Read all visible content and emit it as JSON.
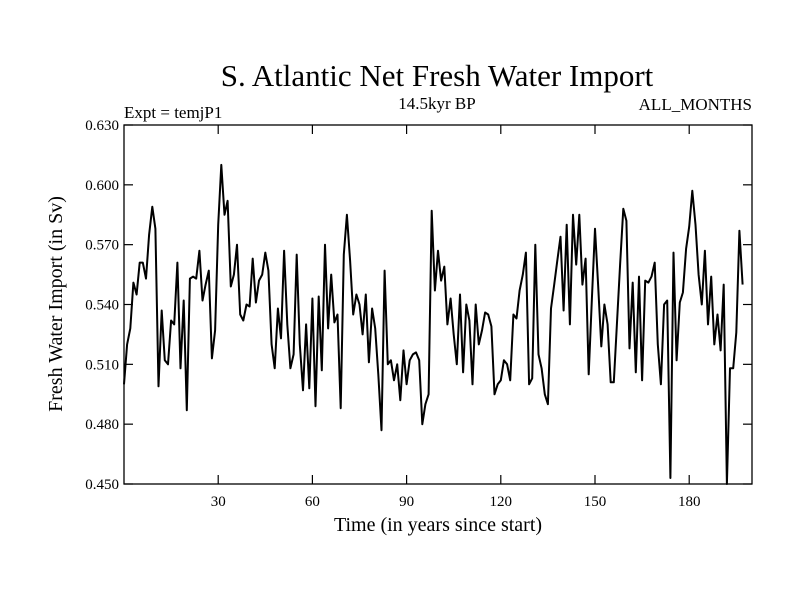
{
  "chart_data": {
    "type": "line",
    "title": "S. Atlantic Net Fresh Water Import",
    "subtitle": "14.5kyr BP",
    "left_label": "Expt = temjP1",
    "right_label": "ALL_MONTHS",
    "xlabel": "Time (in years since start)",
    "ylabel": "Fresh Water Import (in Sv)",
    "xlim": [
      0,
      200
    ],
    "ylim": [
      0.45,
      0.63
    ],
    "x_ticks": [
      30,
      60,
      90,
      120,
      150,
      180
    ],
    "y_ticks": [
      0.45,
      0.48,
      0.51,
      0.54,
      0.57,
      0.6,
      0.63
    ],
    "x_tick_labels": [
      "30",
      "60",
      "90",
      "120",
      "150",
      "180"
    ],
    "y_tick_labels": [
      "0.450",
      "0.480",
      "0.510",
      "0.540",
      "0.570",
      "0.600",
      "0.630"
    ],
    "line_color": "#000000",
    "series": [
      {
        "name": "Fresh Water Import",
        "x_start": 0,
        "x_step": 1,
        "values": [
          0.5,
          0.52,
          0.528,
          0.551,
          0.545,
          0.561,
          0.561,
          0.553,
          0.575,
          0.589,
          0.578,
          0.499,
          0.537,
          0.512,
          0.51,
          0.532,
          0.53,
          0.561,
          0.508,
          0.542,
          0.487,
          0.553,
          0.554,
          0.553,
          0.567,
          0.542,
          0.55,
          0.557,
          0.513,
          0.527,
          0.58,
          0.61,
          0.585,
          0.592,
          0.549,
          0.555,
          0.57,
          0.535,
          0.532,
          0.54,
          0.539,
          0.563,
          0.541,
          0.552,
          0.555,
          0.566,
          0.557,
          0.52,
          0.508,
          0.538,
          0.523,
          0.567,
          0.53,
          0.508,
          0.515,
          0.565,
          0.52,
          0.497,
          0.53,
          0.498,
          0.543,
          0.489,
          0.544,
          0.507,
          0.57,
          0.528,
          0.555,
          0.531,
          0.535,
          0.488,
          0.565,
          0.585,
          0.562,
          0.535,
          0.545,
          0.54,
          0.525,
          0.545,
          0.511,
          0.538,
          0.528,
          0.505,
          0.477,
          0.557,
          0.51,
          0.512,
          0.502,
          0.51,
          0.492,
          0.517,
          0.5,
          0.512,
          0.515,
          0.516,
          0.512,
          0.48,
          0.49,
          0.495,
          0.587,
          0.547,
          0.567,
          0.552,
          0.559,
          0.53,
          0.543,
          0.525,
          0.51,
          0.545,
          0.506,
          0.54,
          0.532,
          0.5,
          0.54,
          0.52,
          0.527,
          0.536,
          0.535,
          0.529,
          0.495,
          0.5,
          0.502,
          0.512,
          0.51,
          0.502,
          0.535,
          0.533,
          0.547,
          0.555,
          0.566,
          0.5,
          0.503,
          0.57,
          0.515,
          0.508,
          0.495,
          0.49,
          0.538,
          0.55,
          0.562,
          0.574,
          0.537,
          0.58,
          0.53,
          0.585,
          0.56,
          0.585,
          0.55,
          0.563,
          0.505,
          0.543,
          0.578,
          0.55,
          0.519,
          0.54,
          0.53,
          0.501,
          0.501,
          0.531,
          0.56,
          0.588,
          0.582,
          0.518,
          0.551,
          0.506,
          0.554,
          0.502,
          0.552,
          0.551,
          0.554,
          0.561,
          0.52,
          0.5,
          0.54,
          0.542,
          0.453,
          0.566,
          0.512,
          0.541,
          0.546,
          0.568,
          0.579,
          0.597,
          0.58,
          0.555,
          0.54,
          0.567,
          0.53,
          0.554,
          0.52,
          0.535,
          0.517,
          0.55,
          0.448,
          0.508,
          0.508,
          0.526,
          0.577,
          0.55
        ]
      }
    ]
  }
}
